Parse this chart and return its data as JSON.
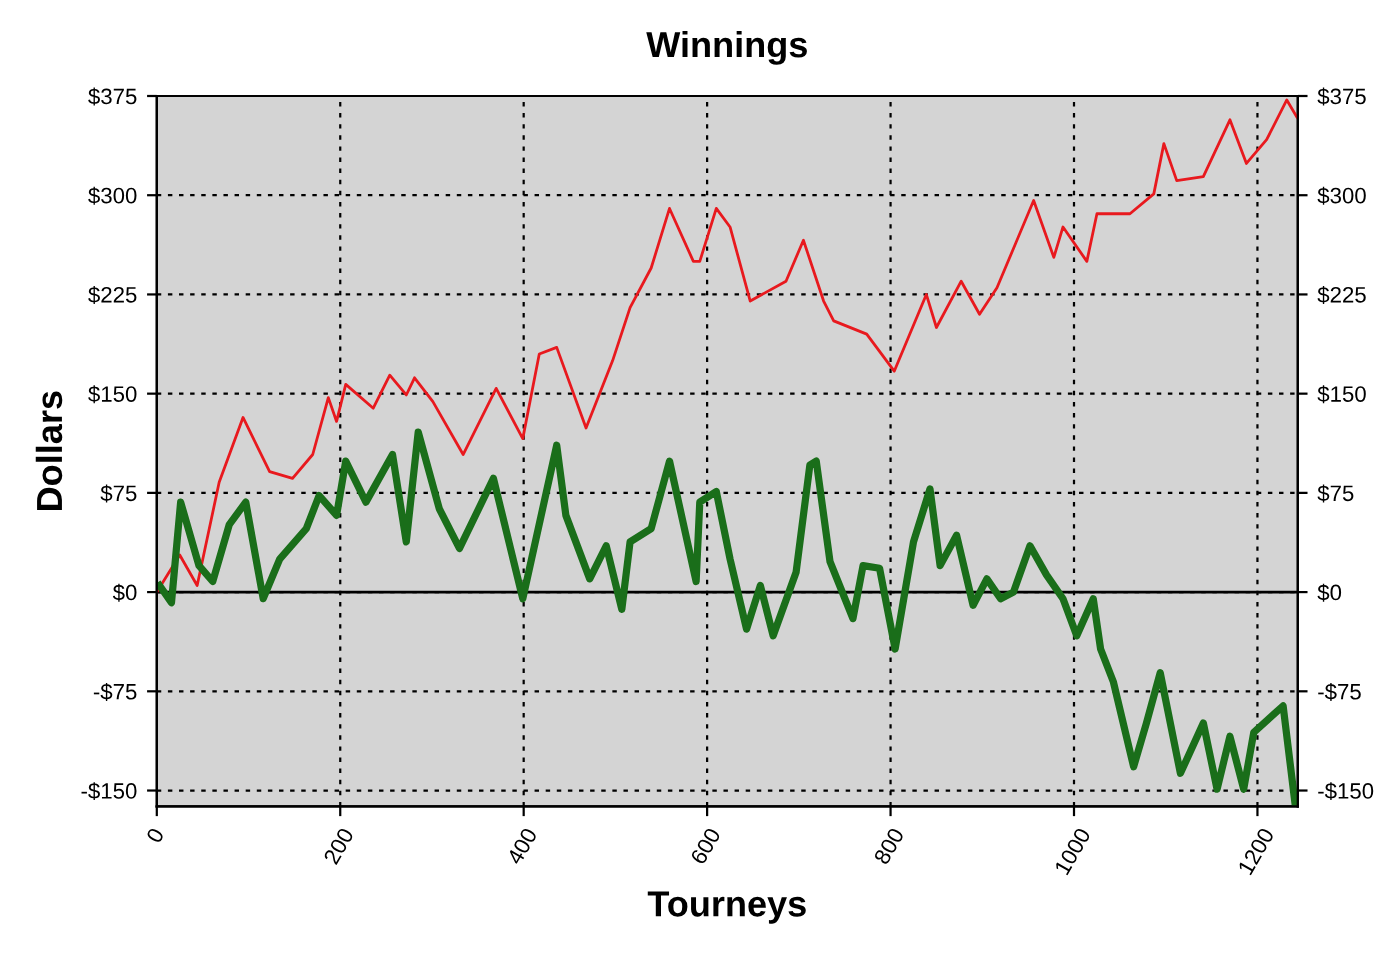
{
  "chart_data": {
    "type": "line",
    "title": "Winnings",
    "xlabel": "Tourneys",
    "ylabel": "Dollars",
    "xlim": [
      0,
      1244
    ],
    "xticks": [
      0,
      200,
      400,
      600,
      800,
      1000,
      1200
    ],
    "ylim": [
      -162,
      375
    ],
    "yticks": [
      {
        "value": -150,
        "label": "-$150"
      },
      {
        "value": -75,
        "label": "-$75"
      },
      {
        "value": 0,
        "label": "$0"
      },
      {
        "value": 75,
        "label": "$75"
      },
      {
        "value": 150,
        "label": "$150"
      },
      {
        "value": 225,
        "label": "$225"
      },
      {
        "value": 300,
        "label": "$300"
      },
      {
        "value": 375,
        "label": "$375"
      }
    ],
    "y2lim": [
      -162,
      375
    ],
    "y2ticks": [
      {
        "value": -150,
        "label": "-$150"
      },
      {
        "value": -75,
        "label": "-$75"
      },
      {
        "value": 0,
        "label": "$0"
      },
      {
        "value": 75,
        "label": "$75"
      },
      {
        "value": 150,
        "label": "$150"
      },
      {
        "value": 225,
        "label": "$225"
      },
      {
        "value": 300,
        "label": "$300"
      },
      {
        "value": 375,
        "label": "$375"
      }
    ],
    "grid": true,
    "legend": false,
    "marker": "none",
    "line_style": "solid",
    "ref_lines": [
      {
        "axis": "y",
        "value": 0,
        "label": null,
        "color": "#000000",
        "line_style": "solid"
      }
    ],
    "series": [
      {
        "color": "#e8191e",
        "x": [
          0,
          25,
          44,
          68,
          94,
          123,
          148,
          170,
          187,
          196,
          206,
          236,
          254,
          272,
          281,
          301,
          334,
          370,
          399,
          417,
          436,
          468,
          497,
          516,
          539,
          559,
          585,
          592,
          610,
          625,
          647,
          686,
          705,
          727,
          738,
          774,
          804,
          839,
          850,
          877,
          897,
          916,
          956,
          978,
          988,
          1014,
          1025,
          1061,
          1087,
          1098,
          1112,
          1141,
          1170,
          1188,
          1210,
          1232,
          1243
        ],
        "values": [
          0,
          28,
          5,
          83,
          132,
          91,
          86,
          104,
          147,
          129,
          157,
          139,
          164,
          149,
          162,
          144,
          104,
          154,
          116,
          180,
          185,
          124,
          175,
          215,
          245,
          290,
          250,
          250,
          290,
          276,
          220,
          235,
          266,
          220,
          205,
          195,
          167,
          225,
          200,
          235,
          210,
          230,
          296,
          253,
          276,
          250,
          286,
          286,
          301,
          339,
          311,
          314,
          357,
          324,
          342,
          372,
          359
        ]
      },
      {
        "color": "#1a6e1a",
        "x": [
          3,
          16,
          26,
          46,
          61,
          79,
          97,
          116,
          134,
          163,
          177,
          196,
          206,
          228,
          257,
          272,
          285,
          308,
          330,
          367,
          399,
          436,
          446,
          472,
          490,
          507,
          516,
          539,
          559,
          588,
          592,
          610,
          625,
          643,
          658,
          672,
          697,
          712,
          719,
          734,
          759,
          770,
          788,
          805,
          825,
          843,
          854,
          872,
          890,
          905,
          920,
          934,
          952,
          970,
          988,
          1003,
          1021,
          1029,
          1043,
          1065,
          1079,
          1094,
          1116,
          1141,
          1156,
          1170,
          1185,
          1196,
          1228,
          1241
        ],
        "values": [
          5,
          -8,
          68,
          20,
          8,
          51,
          68,
          -5,
          25,
          48,
          73,
          58,
          99,
          68,
          104,
          38,
          121,
          63,
          33,
          86,
          -5,
          111,
          58,
          10,
          35,
          -13,
          38,
          48,
          99,
          8,
          68,
          76,
          25,
          -28,
          5,
          -33,
          15,
          96,
          99,
          23,
          -20,
          20,
          18,
          -43,
          38,
          78,
          20,
          43,
          -10,
          10,
          -5,
          0,
          35,
          13,
          -5,
          -33,
          -5,
          -43,
          -68,
          -132,
          -99,
          -61,
          -137,
          -99,
          -149,
          -109,
          -149,
          -106,
          -86,
          -160
        ]
      }
    ]
  }
}
